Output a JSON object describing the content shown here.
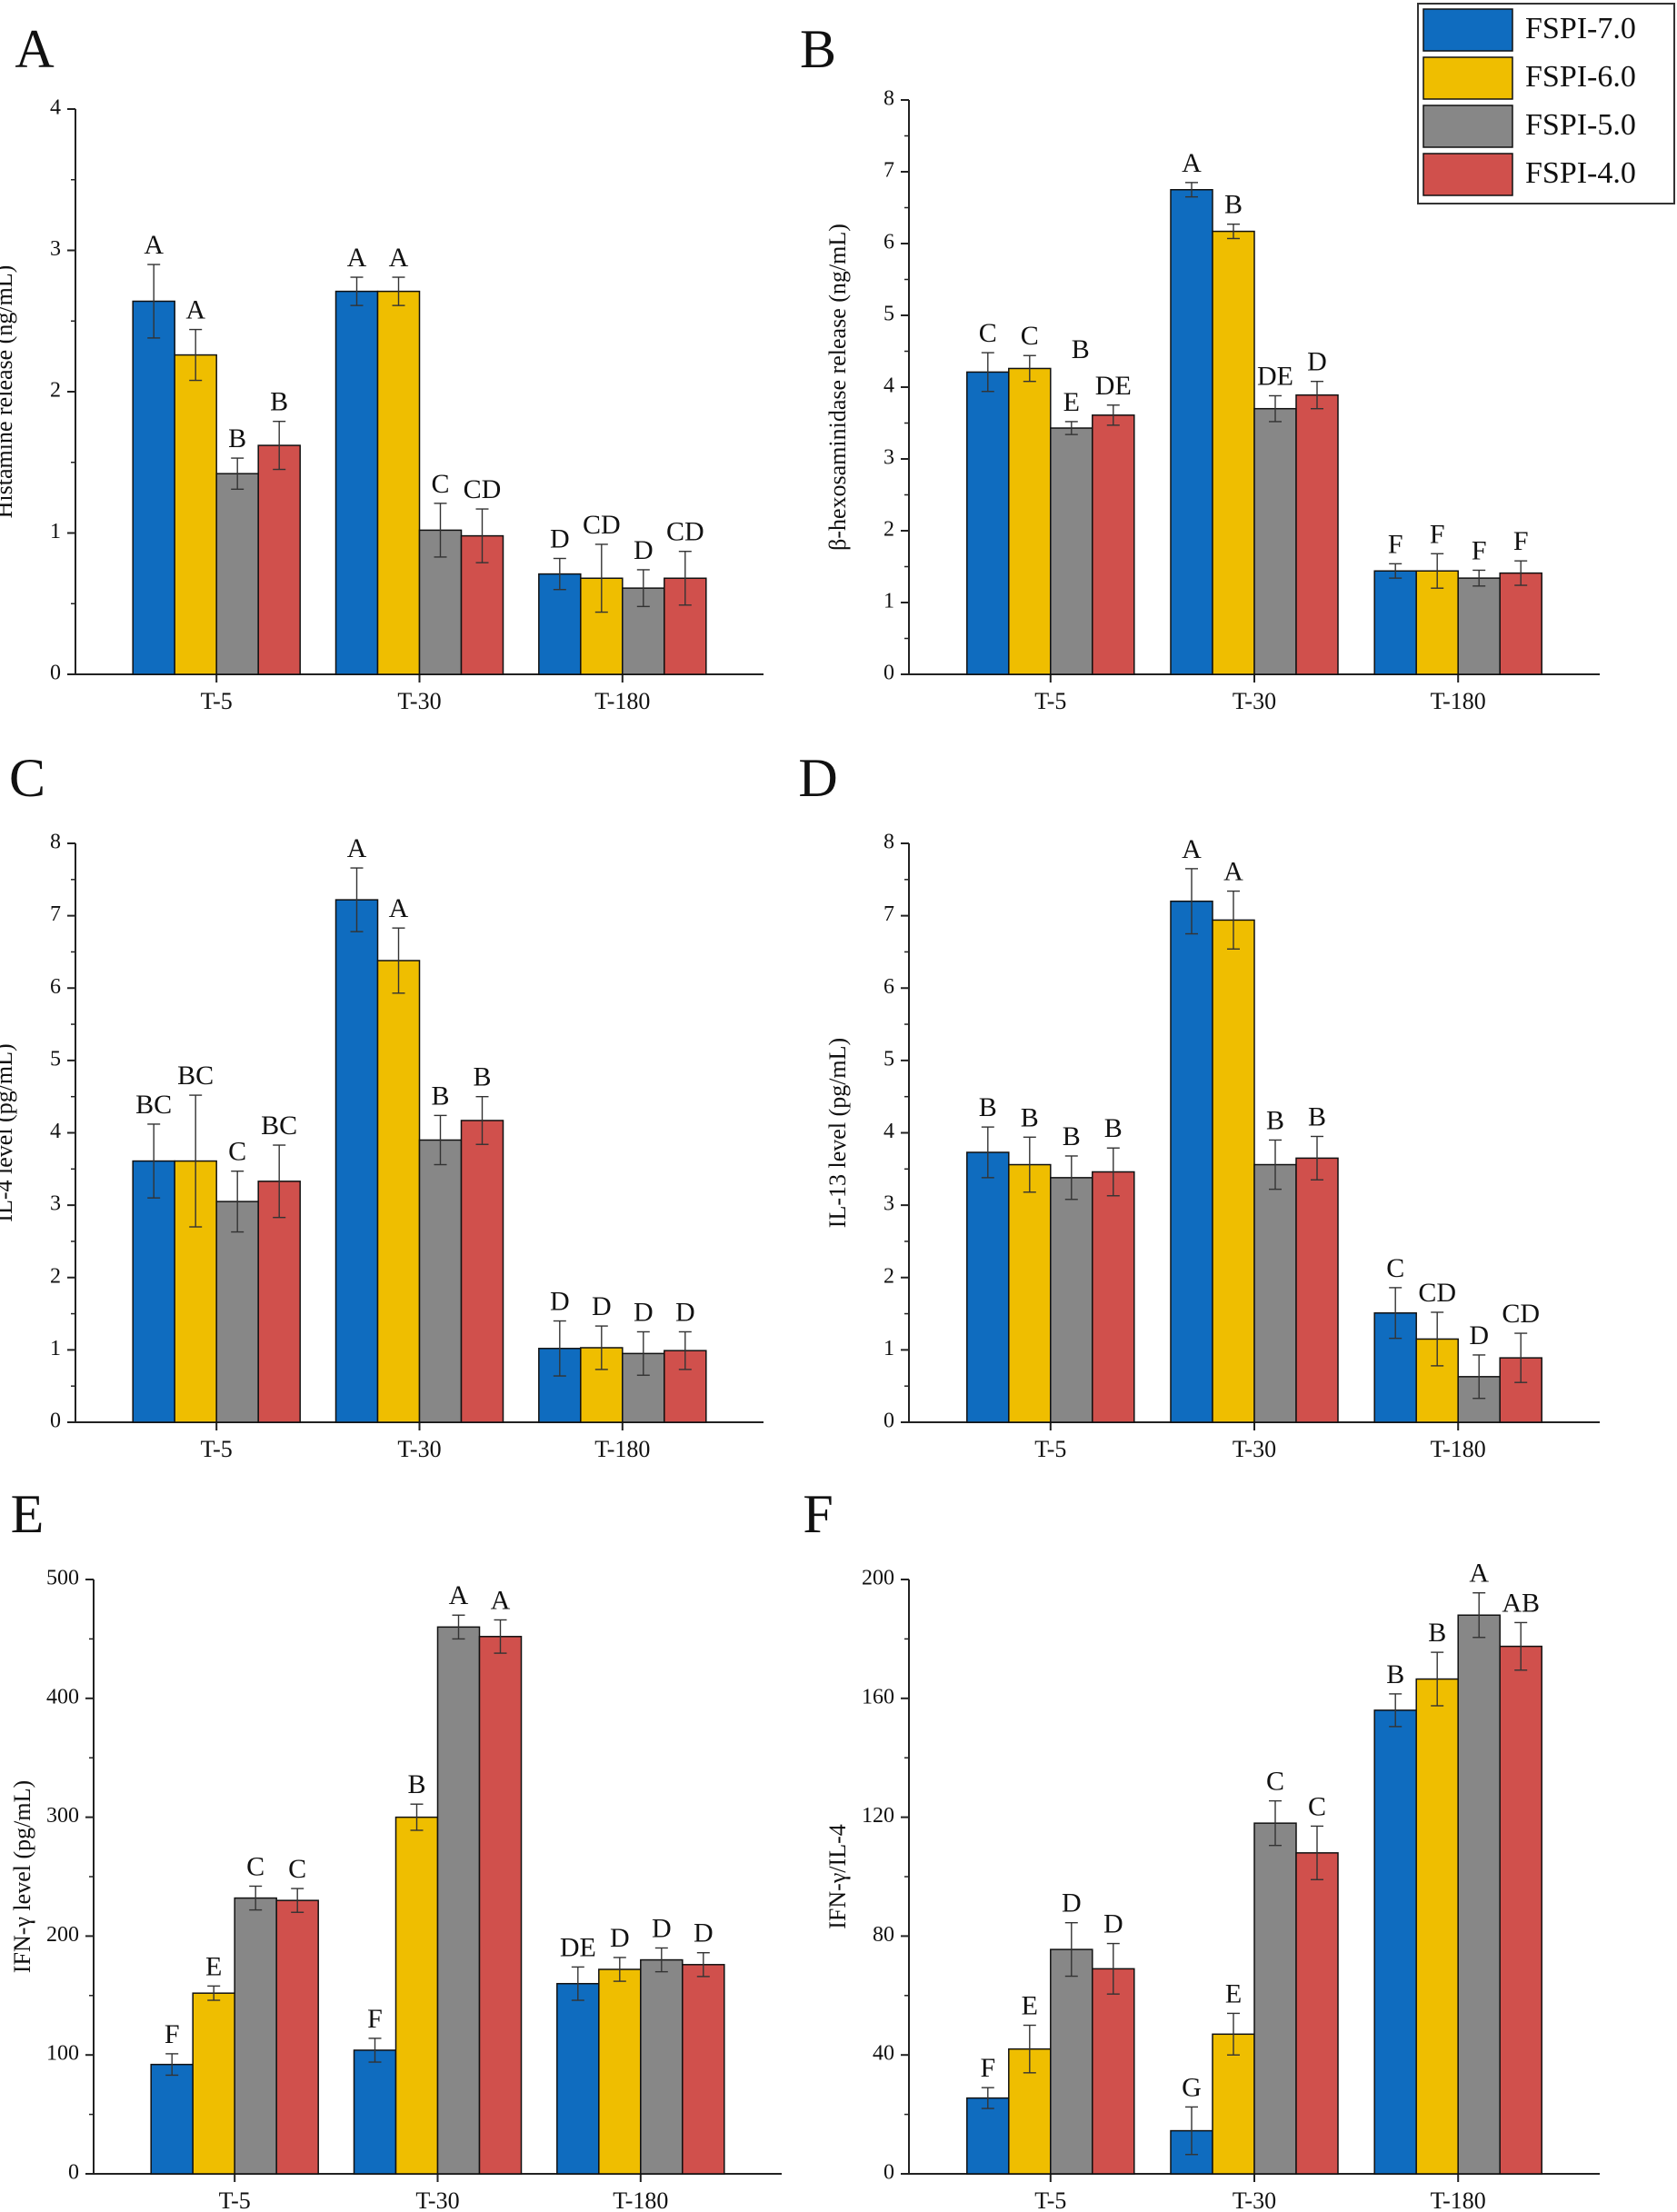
{
  "legend": {
    "entries": [
      "FSPI-7.0",
      "FSPI-6.0",
      "FSPI-5.0",
      "FSPI-4.0"
    ],
    "colors": [
      "#0F6CBF",
      "#EFBE00",
      "#878787",
      "#D0504C"
    ]
  },
  "chart_data": [
    {
      "panel": "A",
      "type": "bar",
      "ylabel": "Histamine release (ng/mL)",
      "categories": [
        "T-5",
        "T-30",
        "T-180"
      ],
      "ylim": [
        0,
        4
      ],
      "yticks": [
        0,
        1,
        2,
        3,
        4
      ],
      "series": [
        {
          "name": "FSPI-7.0",
          "values": [
            2.64,
            2.71,
            0.71
          ],
          "errors": [
            0.26,
            0.1,
            0.11
          ],
          "letters": [
            "A",
            "A",
            "D"
          ]
        },
        {
          "name": "FSPI-6.0",
          "values": [
            2.26,
            2.71,
            0.68
          ],
          "errors": [
            0.18,
            0.1,
            0.24
          ],
          "letters": [
            "A",
            "A",
            "CD"
          ]
        },
        {
          "name": "FSPI-5.0",
          "values": [
            1.42,
            1.02,
            0.61
          ],
          "errors": [
            0.11,
            0.19,
            0.13
          ],
          "letters": [
            "B",
            "C",
            "D"
          ]
        },
        {
          "name": "FSPI-4.0",
          "values": [
            1.62,
            0.98,
            0.68
          ],
          "errors": [
            0.17,
            0.19,
            0.19
          ],
          "letters": [
            "B",
            "CD",
            "CD"
          ]
        }
      ]
    },
    {
      "panel": "B",
      "type": "bar",
      "ylabel": "β-hexosaminidase release (ng/mL)",
      "categories": [
        "T-5",
        "T-30",
        "T-180"
      ],
      "ylim": [
        0,
        8
      ],
      "yticks": [
        0,
        1,
        2,
        3,
        4,
        5,
        6,
        7,
        8
      ],
      "series": [
        {
          "name": "FSPI-7.0",
          "values": [
            4.21,
            6.75,
            1.44
          ],
          "errors": [
            0.27,
            0.1,
            0.1
          ],
          "letters": [
            "C",
            "A",
            "F"
          ]
        },
        {
          "name": "FSPI-6.0",
          "values": [
            4.26,
            6.17,
            1.44
          ],
          "errors": [
            0.18,
            0.1,
            0.24
          ],
          "letters": [
            "C",
            "B",
            "F"
          ]
        },
        {
          "name": "FSPI-5.0",
          "values": [
            3.43,
            3.7,
            1.34
          ],
          "errors": [
            0.09,
            0.18,
            0.11
          ],
          "letters": [
            "E",
            "DE",
            "F"
          ]
        },
        {
          "name": "FSPI-4.0",
          "values": [
            3.61,
            3.89,
            1.41
          ],
          "errors": [
            0.14,
            0.19,
            0.17
          ],
          "letters": [
            "DE",
            "D",
            "F"
          ]
        }
      ],
      "extra_labels": [
        {
          "text": "B",
          "category": 0,
          "series": 2
        }
      ]
    },
    {
      "panel": "C",
      "type": "bar",
      "ylabel": "IL-4 level (pg/mL)",
      "categories": [
        "T-5",
        "T-30",
        "T-180"
      ],
      "ylim": [
        0,
        8
      ],
      "yticks": [
        0,
        1,
        2,
        3,
        4,
        5,
        6,
        7,
        8
      ],
      "series": [
        {
          "name": "FSPI-7.0",
          "values": [
            3.61,
            7.22,
            1.02
          ],
          "errors": [
            0.51,
            0.44,
            0.38
          ],
          "letters": [
            "BC",
            "A",
            "D"
          ]
        },
        {
          "name": "FSPI-6.0",
          "values": [
            3.61,
            6.38,
            1.03
          ],
          "errors": [
            0.91,
            0.45,
            0.3
          ],
          "letters": [
            "BC",
            "A",
            "D"
          ]
        },
        {
          "name": "FSPI-5.0",
          "values": [
            3.05,
            3.9,
            0.95
          ],
          "errors": [
            0.42,
            0.34,
            0.3
          ],
          "letters": [
            "C",
            "B",
            "D"
          ]
        },
        {
          "name": "FSPI-4.0",
          "values": [
            3.33,
            4.17,
            0.99
          ],
          "errors": [
            0.5,
            0.33,
            0.26
          ],
          "letters": [
            "BC",
            "B",
            "D"
          ]
        }
      ]
    },
    {
      "panel": "D",
      "type": "bar",
      "ylabel": "IL-13 level (pg/mL)",
      "categories": [
        "T-5",
        "T-30",
        "T-180"
      ],
      "ylim": [
        0,
        8
      ],
      "yticks": [
        0,
        1,
        2,
        3,
        4,
        5,
        6,
        7,
        8
      ],
      "series": [
        {
          "name": "FSPI-7.0",
          "values": [
            3.73,
            7.2,
            1.51
          ],
          "errors": [
            0.35,
            0.45,
            0.35
          ],
          "letters": [
            "B",
            "A",
            "C"
          ]
        },
        {
          "name": "FSPI-6.0",
          "values": [
            3.56,
            6.94,
            1.15
          ],
          "errors": [
            0.38,
            0.4,
            0.37
          ],
          "letters": [
            "B",
            "A",
            "CD"
          ]
        },
        {
          "name": "FSPI-5.0",
          "values": [
            3.38,
            3.56,
            0.63
          ],
          "errors": [
            0.3,
            0.34,
            0.3
          ],
          "letters": [
            "B",
            "B",
            "D"
          ]
        },
        {
          "name": "FSPI-4.0",
          "values": [
            3.46,
            3.65,
            0.89
          ],
          "errors": [
            0.33,
            0.3,
            0.34
          ],
          "letters": [
            "B",
            "B",
            "CD"
          ]
        }
      ]
    },
    {
      "panel": "E",
      "type": "bar",
      "ylabel": "IFN-γ level (pg/mL)",
      "categories": [
        "T-5",
        "T-30",
        "T-180"
      ],
      "ylim": [
        0,
        500
      ],
      "yticks": [
        0,
        100,
        200,
        300,
        400,
        500
      ],
      "series": [
        {
          "name": "FSPI-7.0",
          "values": [
            92,
            104,
            160
          ],
          "errors": [
            9,
            10,
            14
          ],
          "letters": [
            "F",
            "F",
            "DE"
          ]
        },
        {
          "name": "FSPI-6.0",
          "values": [
            152,
            300,
            172
          ],
          "errors": [
            6,
            11,
            10
          ],
          "letters": [
            "E",
            "B",
            "D"
          ]
        },
        {
          "name": "FSPI-5.0",
          "values": [
            232,
            460,
            180
          ],
          "errors": [
            10,
            10,
            10
          ],
          "letters": [
            "C",
            "A",
            "D"
          ]
        },
        {
          "name": "FSPI-4.0",
          "values": [
            230,
            452,
            176
          ],
          "errors": [
            10,
            14,
            10
          ],
          "letters": [
            "C",
            "A",
            "D"
          ]
        }
      ]
    },
    {
      "panel": "F",
      "type": "bar",
      "ylabel": "IFN-γ/IL-4",
      "categories": [
        "T-5",
        "T-30",
        "T-180"
      ],
      "ylim": [
        0,
        200
      ],
      "yticks": [
        0,
        40,
        80,
        120,
        160,
        200
      ],
      "series": [
        {
          "name": "FSPI-7.0",
          "values": [
            25.5,
            14.5,
            156
          ],
          "errors": [
            3.5,
            8,
            5.5
          ],
          "letters": [
            "F",
            "G",
            "B"
          ]
        },
        {
          "name": "FSPI-6.0",
          "values": [
            42,
            47,
            166.5
          ],
          "errors": [
            8,
            7,
            9
          ],
          "letters": [
            "E",
            "E",
            "B"
          ]
        },
        {
          "name": "FSPI-5.0",
          "values": [
            75.5,
            118,
            188
          ],
          "errors": [
            9,
            7.5,
            7.5
          ],
          "letters": [
            "D",
            "C",
            "A"
          ]
        },
        {
          "name": "FSPI-4.0",
          "values": [
            69,
            108,
            177.5
          ],
          "errors": [
            8.5,
            9,
            8
          ],
          "letters": [
            "D",
            "C",
            "AB"
          ]
        }
      ]
    }
  ]
}
